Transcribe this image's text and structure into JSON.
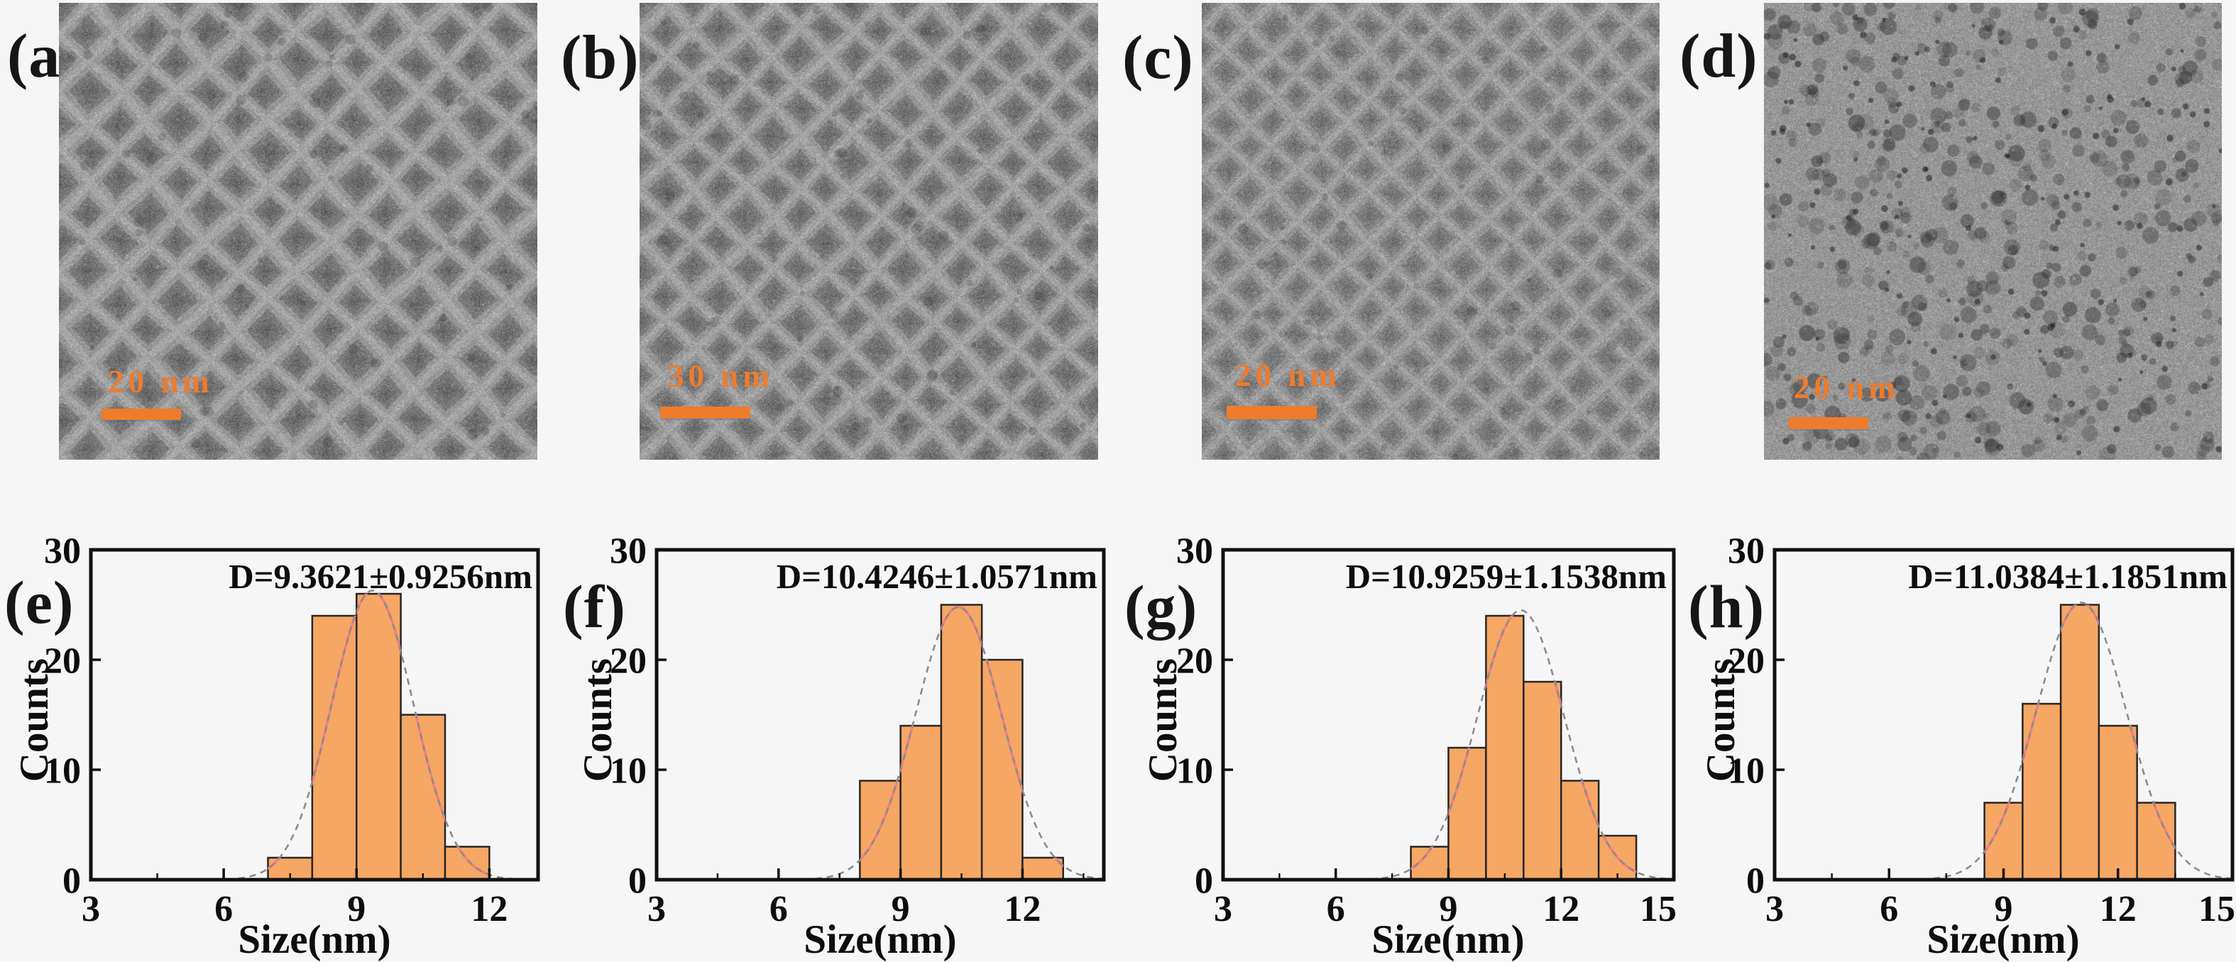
{
  "colors": {
    "background": "#f6f6f6",
    "bar_fill": "#f6a764",
    "bar_edge": "#262626",
    "fit_curve_pink": "#ef8080",
    "fit_curve_gray": "#8c8c8c",
    "axis": "#111111",
    "scalebar_orange": "#ee7c2b"
  },
  "tem_panels": [
    {
      "label": "(a)",
      "scale_bar_text": "20 nm"
    },
    {
      "label": "(b)",
      "scale_bar_text": "30 nm"
    },
    {
      "label": "(c)",
      "scale_bar_text": "20 nm"
    },
    {
      "label": "(d)",
      "scale_bar_text": "20 nm"
    }
  ],
  "chart_data": [
    {
      "type": "bar",
      "panel_label": "(e)",
      "annotation": "D=9.3621±0.9256nm",
      "xlabel": "Size(nm)",
      "ylabel": "Counts",
      "xlim": [
        3,
        13.1
      ],
      "ylim": [
        0,
        30
      ],
      "xticks": [
        3,
        6,
        9,
        12
      ],
      "yticks": [
        0,
        10,
        20,
        30
      ],
      "bin_start": 7,
      "bin_width": 1,
      "counts": [
        2,
        24,
        26,
        15,
        3
      ],
      "gauss_fit": {
        "mean": 9.3621,
        "sigma": 0.9256,
        "peak": 26.3
      },
      "grid": "off",
      "legend": "none"
    },
    {
      "type": "bar",
      "panel_label": "(f)",
      "annotation": "D=10.4246±1.0571nm",
      "xlabel": "Size(nm)",
      "ylabel": "Counts",
      "xlim": [
        3,
        14
      ],
      "ylim": [
        0,
        30
      ],
      "xticks": [
        3,
        6,
        9,
        12
      ],
      "yticks": [
        0,
        10,
        20,
        30
      ],
      "bin_start": 8,
      "bin_width": 1,
      "counts": [
        9,
        14,
        25,
        20,
        2
      ],
      "gauss_fit": {
        "mean": 10.4246,
        "sigma": 1.0571,
        "peak": 24.8
      },
      "grid": "off",
      "legend": "none"
    },
    {
      "type": "bar",
      "panel_label": "(g)",
      "annotation": "D=10.9259±1.1538nm",
      "xlabel": "Size(nm)",
      "ylabel": "Counts",
      "xlim": [
        3,
        15
      ],
      "ylim": [
        0,
        30
      ],
      "xticks": [
        3,
        6,
        9,
        12,
        15
      ],
      "yticks": [
        0,
        10,
        20,
        30
      ],
      "bin_start": 8,
      "bin_width": 1,
      "counts": [
        3,
        12,
        24,
        18,
        9,
        4
      ],
      "gauss_fit": {
        "mean": 10.9259,
        "sigma": 1.1538,
        "peak": 24.5
      },
      "grid": "off",
      "legend": "none"
    },
    {
      "type": "bar",
      "panel_label": "(h)",
      "annotation": "D=11.0384±1.1851nm",
      "xlabel": "Size(nm)",
      "ylabel": "Counts",
      "xlim": [
        3,
        15
      ],
      "ylim": [
        0,
        30
      ],
      "xticks": [
        3,
        6,
        9,
        12,
        15
      ],
      "yticks": [
        0,
        10,
        20,
        30
      ],
      "bin_start": 8.5,
      "bin_width": 1,
      "counts": [
        7,
        16,
        25,
        14,
        7
      ],
      "gauss_fit": {
        "mean": 11.0384,
        "sigma": 1.1851,
        "peak": 25.2
      },
      "grid": "off",
      "legend": "none"
    }
  ]
}
